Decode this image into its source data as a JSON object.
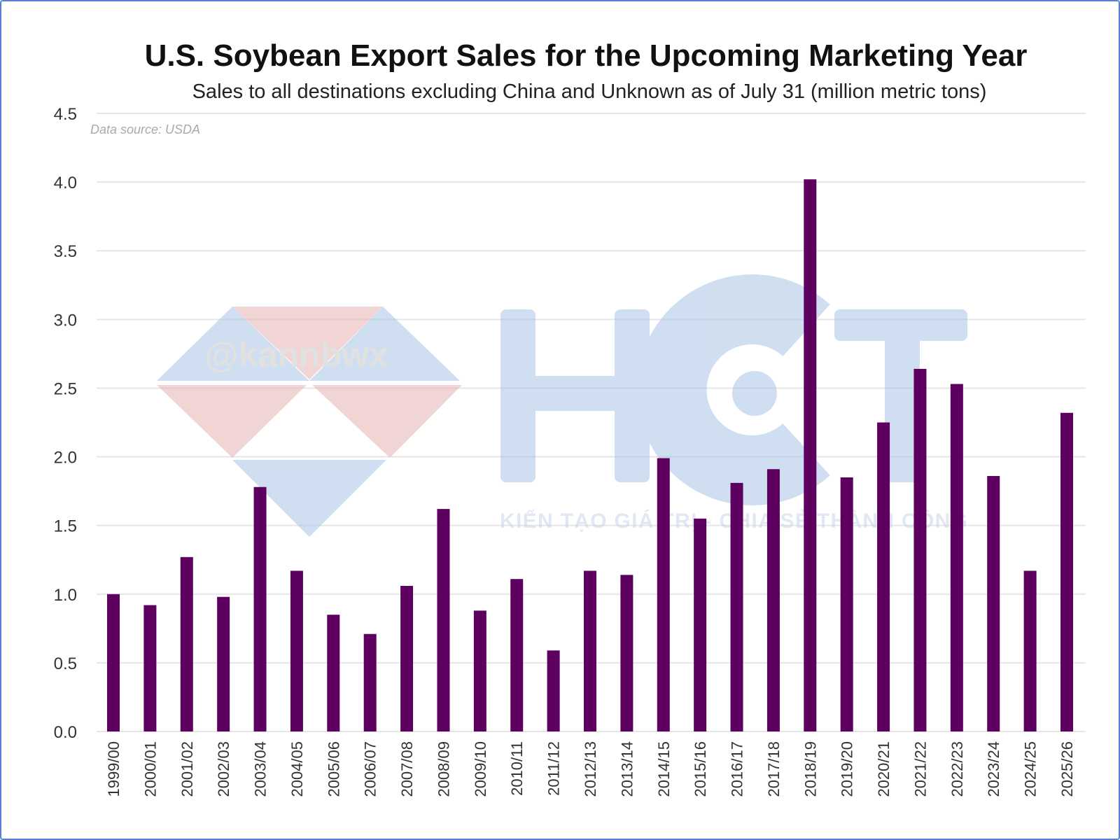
{
  "chart_data": {
    "type": "bar",
    "title": "U.S. Soybean Export Sales for the Upcoming Marketing Year",
    "subtitle": "Sales to all destinations excluding China and Unknown as of July 31 (million metric tons)",
    "source_note": "Data source: USDA",
    "xlabel": "",
    "ylabel": "",
    "ylim": [
      0,
      4.5
    ],
    "yticks": [
      "0.0",
      "0.5",
      "1.0",
      "1.5",
      "2.0",
      "2.5",
      "3.0",
      "3.5",
      "4.0",
      "4.5"
    ],
    "grid": true,
    "bar_color": "#5e0060",
    "categories": [
      "1999/00",
      "2000/01",
      "2001/02",
      "2002/03",
      "2003/04",
      "2004/05",
      "2005/06",
      "2006/07",
      "2007/08",
      "2008/09",
      "2009/10",
      "2010/11",
      "2011/12",
      "2012/13",
      "2013/14",
      "2014/15",
      "2015/16",
      "2016/17",
      "2017/18",
      "2018/19",
      "2019/20",
      "2020/21",
      "2021/22",
      "2022/23",
      "2023/24",
      "2024/25",
      "2025/26"
    ],
    "values": [
      1.0,
      0.92,
      1.27,
      0.98,
      1.78,
      1.17,
      0.85,
      0.71,
      1.06,
      1.62,
      0.88,
      1.11,
      0.59,
      1.17,
      1.14,
      1.99,
      1.55,
      1.81,
      1.91,
      4.02,
      1.85,
      2.25,
      2.64,
      2.53,
      1.86,
      1.17,
      2.32
    ]
  },
  "watermark": {
    "handle": "@kannbwx",
    "logo": "HCT",
    "slogan": "KIẾN TẠO GIÁ TRỊ - CHIA SẺ THÀNH CÔNG"
  }
}
